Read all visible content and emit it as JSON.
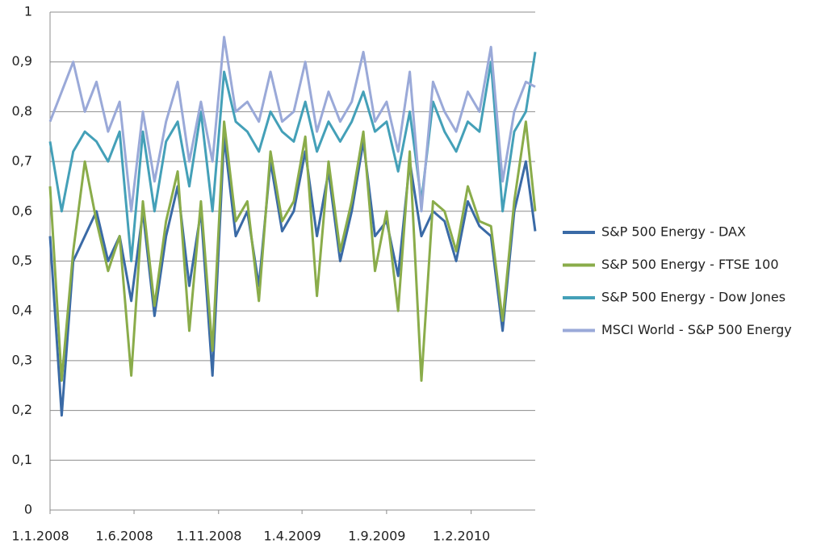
{
  "chart_data": {
    "type": "line",
    "x": [
      "1.1.2008",
      "22.1.2008",
      "12.2.2008",
      "4.3.2008",
      "25.3.2008",
      "15.4.2008",
      "6.5.2008",
      "27.5.2008",
      "17.6.2008",
      "8.7.2008",
      "29.7.2008",
      "19.8.2008",
      "9.9.2008",
      "30.9.2008",
      "21.10.2008",
      "11.11.2008",
      "2.12.2008",
      "23.12.2008",
      "13.1.2009",
      "3.2.2009",
      "24.2.2009",
      "17.3.2009",
      "7.4.2009",
      "28.4.2009",
      "19.5.2009",
      "9.6.2009",
      "30.6.2009",
      "21.7.2009",
      "11.8.2009",
      "1.9.2009",
      "22.9.2009",
      "13.10.2009",
      "3.11.2009",
      "24.11.2009",
      "15.12.2009",
      "5.1.2010",
      "26.1.2010",
      "16.2.2010",
      "9.3.2010",
      "30.3.2010",
      "20.4.2010",
      "11.5.2010",
      "28.5.2010"
    ],
    "series": [
      {
        "name": "S&P 500 Energy - DAX",
        "color": "#3a6aa6",
        "values": [
          0.55,
          0.19,
          0.5,
          0.55,
          0.6,
          0.5,
          0.55,
          0.42,
          0.6,
          0.39,
          0.55,
          0.65,
          0.45,
          0.6,
          0.27,
          0.75,
          0.55,
          0.6,
          0.45,
          0.7,
          0.56,
          0.6,
          0.72,
          0.55,
          0.68,
          0.5,
          0.6,
          0.74,
          0.55,
          0.58,
          0.47,
          0.7,
          0.55,
          0.6,
          0.58,
          0.5,
          0.62,
          0.57,
          0.55,
          0.36,
          0.6,
          0.7,
          0.56
        ]
      },
      {
        "name": "S&P 500 Energy - FTSE 100",
        "color": "#8aac4a",
        "values": [
          0.65,
          0.26,
          0.52,
          0.7,
          0.58,
          0.48,
          0.55,
          0.27,
          0.62,
          0.41,
          0.58,
          0.68,
          0.36,
          0.62,
          0.32,
          0.78,
          0.58,
          0.62,
          0.42,
          0.72,
          0.58,
          0.62,
          0.75,
          0.43,
          0.7,
          0.52,
          0.62,
          0.76,
          0.48,
          0.6,
          0.4,
          0.72,
          0.26,
          0.62,
          0.6,
          0.52,
          0.65,
          0.58,
          0.57,
          0.38,
          0.62,
          0.78,
          0.6
        ]
      },
      {
        "name": "S&P 500 Energy - Dow Jones",
        "color": "#44a0b8",
        "values": [
          0.74,
          0.6,
          0.72,
          0.76,
          0.74,
          0.7,
          0.76,
          0.5,
          0.76,
          0.6,
          0.74,
          0.78,
          0.65,
          0.8,
          0.6,
          0.88,
          0.78,
          0.76,
          0.72,
          0.8,
          0.76,
          0.74,
          0.82,
          0.72,
          0.78,
          0.74,
          0.78,
          0.84,
          0.76,
          0.78,
          0.68,
          0.8,
          0.62,
          0.82,
          0.76,
          0.72,
          0.78,
          0.76,
          0.9,
          0.6,
          0.76,
          0.8,
          0.92
        ]
      },
      {
        "name": "MSCI World - S&P 500 Energy",
        "color": "#9aa9d8",
        "values": [
          0.78,
          0.84,
          0.9,
          0.8,
          0.86,
          0.76,
          0.82,
          0.6,
          0.8,
          0.66,
          0.78,
          0.86,
          0.7,
          0.82,
          0.7,
          0.95,
          0.8,
          0.82,
          0.78,
          0.88,
          0.78,
          0.8,
          0.9,
          0.76,
          0.84,
          0.78,
          0.82,
          0.92,
          0.78,
          0.82,
          0.72,
          0.88,
          0.6,
          0.86,
          0.8,
          0.76,
          0.84,
          0.8,
          0.93,
          0.66,
          0.8,
          0.86,
          0.85
        ]
      }
    ],
    "xlim": [
      "1.1.2008",
      "28.5.2010"
    ],
    "xticks": [
      "1.1.2008",
      "1.6.2008",
      "1.11.2008",
      "1.4.2009",
      "1.9.2009",
      "1.2.2010"
    ],
    "ylim": [
      0,
      1
    ],
    "yticks": [
      0,
      {
        "value": 0.1,
        "label": "0,1"
      },
      {
        "value": 0.2,
        "label": "0,2"
      },
      {
        "value": 0.3,
        "label": "0,3"
      },
      {
        "value": 0.4,
        "label": "0,4"
      },
      {
        "value": 0.5,
        "label": "0,5"
      },
      {
        "value": 0.6,
        "label": "0,6"
      },
      {
        "value": 0.7,
        "label": "0,7"
      },
      {
        "value": 0.8,
        "label": "0,8"
      },
      {
        "value": 0.9,
        "label": "0,9"
      },
      1
    ],
    "grid": true,
    "legend": "right"
  }
}
